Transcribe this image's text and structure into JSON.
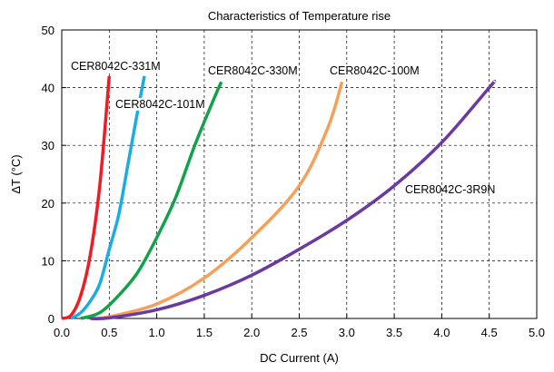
{
  "chart_data": {
    "type": "line",
    "title": "Characteristics of Temperature rise",
    "xlabel": "DC Current (A)",
    "ylabel": "ΔT (°C)",
    "xlim": [
      0,
      5
    ],
    "ylim": [
      0,
      50
    ],
    "xticks": [
      "0.0",
      "0.5",
      "1.0",
      "1.5",
      "2.0",
      "2.5",
      "3.0",
      "3.5",
      "4.0",
      "4.5",
      "5.0"
    ],
    "yticks": [
      "0",
      "10",
      "20",
      "30",
      "40",
      "50"
    ],
    "grid": true,
    "legend": "none",
    "series": [
      {
        "name": "CER8042C-331M",
        "color": "#ee1c25",
        "points": [
          [
            0.0,
            0
          ],
          [
            0.1,
            0.6
          ],
          [
            0.2,
            4
          ],
          [
            0.3,
            11
          ],
          [
            0.4,
            23
          ],
          [
            0.5,
            42
          ]
        ]
      },
      {
        "name": "CER8042C-101M",
        "color": "#1cace3",
        "points": [
          [
            0.1,
            0
          ],
          [
            0.2,
            1
          ],
          [
            0.3,
            3
          ],
          [
            0.4,
            6
          ],
          [
            0.5,
            12
          ],
          [
            0.6,
            18
          ],
          [
            0.7,
            27
          ],
          [
            0.8,
            36
          ],
          [
            0.87,
            42
          ]
        ]
      },
      {
        "name": "CER8042C-330M",
        "color": "#13a24a",
        "points": [
          [
            0.2,
            0
          ],
          [
            0.4,
            1
          ],
          [
            0.6,
            4
          ],
          [
            0.8,
            8
          ],
          [
            1.0,
            14
          ],
          [
            1.2,
            21
          ],
          [
            1.4,
            30
          ],
          [
            1.6,
            38
          ],
          [
            1.68,
            41
          ]
        ]
      },
      {
        "name": "CER8042C-100M",
        "color": "#f5a05a",
        "points": [
          [
            0.3,
            0
          ],
          [
            0.5,
            0.3
          ],
          [
            1.0,
            2.5
          ],
          [
            1.5,
            7
          ],
          [
            2.0,
            14
          ],
          [
            2.5,
            23
          ],
          [
            2.8,
            33
          ],
          [
            2.95,
            41
          ]
        ]
      },
      {
        "name": "CER8042C-3R9N",
        "color": "#6b3aa0",
        "points": [
          [
            0.3,
            0
          ],
          [
            0.5,
            0.1
          ],
          [
            1.0,
            1.5
          ],
          [
            1.5,
            4
          ],
          [
            2.0,
            7.5
          ],
          [
            2.5,
            12
          ],
          [
            3.0,
            17
          ],
          [
            3.5,
            23
          ],
          [
            4.0,
            30.5
          ],
          [
            4.5,
            40
          ],
          [
            4.55,
            41
          ]
        ]
      }
    ]
  }
}
